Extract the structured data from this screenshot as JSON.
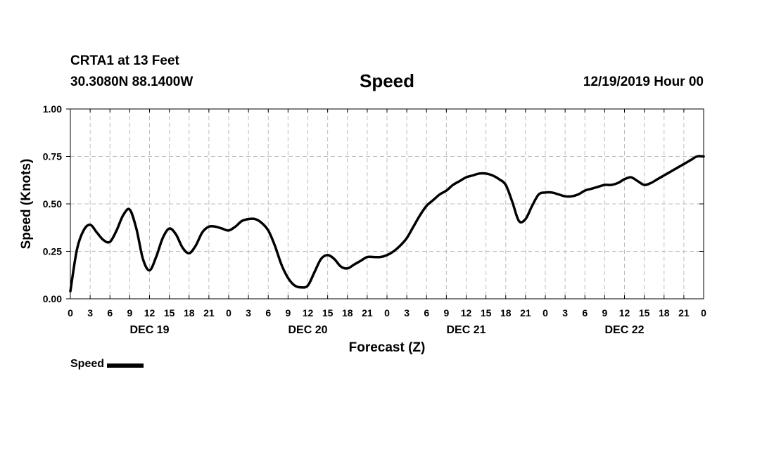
{
  "header": {
    "station": "CRTA1 at 13 Feet",
    "coordinates": "30.3080N 88.1400W",
    "title": "Speed",
    "datetime": "12/19/2019 Hour 00"
  },
  "legend": {
    "label": "Speed",
    "color": "#000000"
  },
  "chart_data": {
    "type": "line",
    "title": "Speed",
    "xlabel": "Forecast (Z)",
    "ylabel": "Speed (Knots)",
    "xlim": [
      0,
      96
    ],
    "ylim": [
      0,
      1
    ],
    "grid": true,
    "x_tick_hours": [
      0,
      3,
      6,
      9,
      12,
      15,
      18,
      21,
      24,
      27,
      30,
      33,
      36,
      39,
      42,
      45,
      48,
      51,
      54,
      57,
      60,
      63,
      66,
      69,
      72,
      75,
      78,
      81,
      84,
      87,
      90,
      93,
      96
    ],
    "x_tick_labels": [
      "0",
      "3",
      "6",
      "9",
      "12",
      "15",
      "18",
      "21",
      "0",
      "3",
      "6",
      "9",
      "12",
      "15",
      "18",
      "21",
      "0",
      "3",
      "6",
      "9",
      "12",
      "15",
      "18",
      "21",
      "0",
      "3",
      "6",
      "9",
      "12",
      "15",
      "18",
      "21",
      "0"
    ],
    "y_ticks": [
      0,
      0.25,
      0.5,
      0.75,
      1
    ],
    "y_tick_labels": [
      "0.00",
      "0.25",
      "0.50",
      "0.75",
      "1.00"
    ],
    "day_labels": [
      {
        "label": "DEC 19",
        "hour": 12
      },
      {
        "label": "DEC 20",
        "hour": 36
      },
      {
        "label": "DEC 21",
        "hour": 60
      },
      {
        "label": "DEC 22",
        "hour": 84
      }
    ],
    "series": [
      {
        "name": "Speed",
        "color": "#000000",
        "x": [
          0,
          1,
          2,
          3,
          4,
          5,
          6,
          7,
          8,
          9,
          10,
          11,
          12,
          13,
          14,
          15,
          16,
          17,
          18,
          19,
          20,
          21,
          22,
          23,
          24,
          25,
          26,
          27,
          28,
          29,
          30,
          31,
          32,
          33,
          34,
          35,
          36,
          37,
          38,
          39,
          40,
          41,
          42,
          43,
          44,
          45,
          46,
          47,
          48,
          49,
          50,
          51,
          52,
          53,
          54,
          55,
          56,
          57,
          58,
          59,
          60,
          61,
          62,
          63,
          64,
          65,
          66,
          67,
          68,
          69,
          70,
          71,
          72,
          73,
          74,
          75,
          76,
          77,
          78,
          79,
          80,
          81,
          82,
          83,
          84,
          85,
          86,
          87,
          88,
          89,
          90,
          91,
          92,
          93,
          94,
          95,
          96
        ],
        "values": [
          0.04,
          0.26,
          0.36,
          0.39,
          0.35,
          0.31,
          0.3,
          0.36,
          0.44,
          0.47,
          0.37,
          0.21,
          0.15,
          0.22,
          0.32,
          0.37,
          0.34,
          0.27,
          0.24,
          0.28,
          0.35,
          0.38,
          0.38,
          0.37,
          0.36,
          0.38,
          0.41,
          0.42,
          0.42,
          0.4,
          0.36,
          0.28,
          0.18,
          0.11,
          0.07,
          0.06,
          0.07,
          0.14,
          0.21,
          0.23,
          0.21,
          0.17,
          0.16,
          0.18,
          0.2,
          0.22,
          0.22,
          0.22,
          0.23,
          0.25,
          0.28,
          0.32,
          0.38,
          0.44,
          0.49,
          0.52,
          0.55,
          0.57,
          0.6,
          0.62,
          0.64,
          0.65,
          0.66,
          0.66,
          0.65,
          0.63,
          0.6,
          0.51,
          0.41,
          0.42,
          0.49,
          0.55,
          0.56,
          0.56,
          0.55,
          0.54,
          0.54,
          0.55,
          0.57,
          0.58,
          0.59,
          0.6,
          0.6,
          0.61,
          0.63,
          0.64,
          0.62,
          0.6,
          0.61,
          0.63,
          0.65,
          0.67,
          0.69,
          0.71,
          0.73,
          0.75,
          0.75
        ]
      }
    ]
  }
}
